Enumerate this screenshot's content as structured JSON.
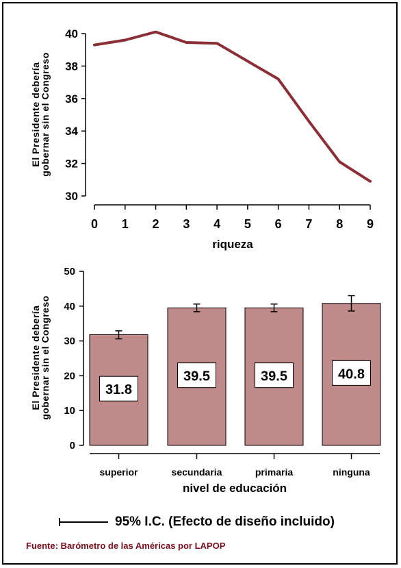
{
  "chart_data": [
    {
      "type": "line",
      "xlabel": "riqueza",
      "ylabel_line1": "El Presidente debería",
      "ylabel_line2": "gobernar sin el Congreso",
      "x": [
        0,
        1,
        2,
        3,
        4,
        5,
        6,
        7,
        8,
        9
      ],
      "y": [
        39.3,
        39.6,
        40.1,
        39.45,
        39.4,
        38.3,
        37.2,
        34.6,
        32.1,
        30.9
      ],
      "xlim": [
        0,
        9
      ],
      "ylim": [
        30,
        40
      ],
      "yticks": [
        30,
        32,
        34,
        36,
        38,
        40
      ],
      "color": "#8b2e36"
    },
    {
      "type": "bar",
      "xlabel": "nivel de educación",
      "ylabel_line1": "El Presidente debería",
      "ylabel_line2": "gobernar sin el Congreso",
      "categories": [
        "superior",
        "secundaria",
        "primaria",
        "ninguna"
      ],
      "values": [
        31.8,
        39.5,
        39.5,
        40.8
      ],
      "value_labels": [
        "31.8",
        "39.5",
        "39.5",
        "40.8"
      ],
      "ci_low": [
        30.6,
        38.4,
        38.4,
        38.6
      ],
      "ci_high": [
        32.9,
        40.6,
        40.6,
        43.0
      ],
      "ylim": [
        0,
        50
      ],
      "yticks": [
        0,
        10,
        20,
        30,
        40,
        50
      ],
      "bar_color": "#c08a8b"
    }
  ],
  "legend": {
    "ci_label": "95%  I.C. (Efecto de diseño incluido)"
  },
  "source": "Fuente: Barómetro de las Américas por LAPOP"
}
